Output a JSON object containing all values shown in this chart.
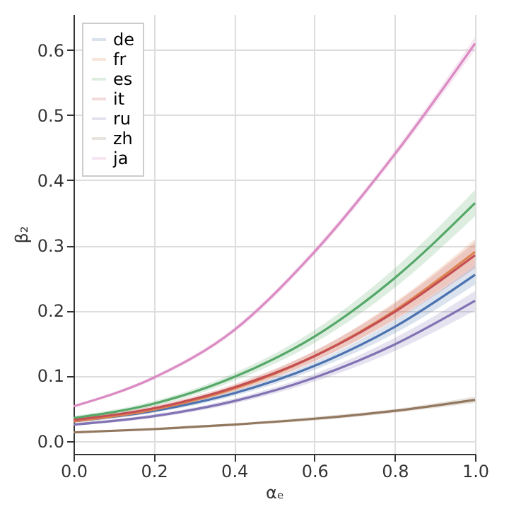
{
  "chart_data": {
    "type": "line",
    "xlabel": "αₑ",
    "ylabel": "β₂",
    "x": [
      0,
      0.2,
      0.4,
      0.6,
      0.8,
      1.0
    ],
    "xlim": [
      0,
      1
    ],
    "xticks": [
      {
        "value": 0,
        "label": "0.0"
      },
      0.2,
      0.4,
      0.6,
      0.8,
      {
        "value": 1,
        "label": "1.0"
      }
    ],
    "ylim": [
      -0.02,
      0.655
    ],
    "yticks": [
      {
        "value": 0,
        "label": "0.0"
      },
      0.1,
      0.2,
      0.3,
      0.4,
      0.5,
      0.6
    ],
    "grid": true,
    "legend": "top left",
    "marker": "none",
    "line_style": "solid",
    "series": [
      {
        "name": "de",
        "color": "#4c72b0",
        "values": [
          0.03,
          0.046,
          0.073,
          0.115,
          0.175,
          0.255
        ],
        "lower": [
          0.028,
          0.043,
          0.069,
          0.109,
          0.165,
          0.24
        ],
        "upper": [
          0.032,
          0.049,
          0.077,
          0.121,
          0.185,
          0.27
        ]
      },
      {
        "name": "fr",
        "color": "#dd8452",
        "values": [
          0.03,
          0.048,
          0.08,
          0.13,
          0.2,
          0.29
        ],
        "lower": [
          0.027,
          0.044,
          0.075,
          0.122,
          0.187,
          0.27
        ],
        "upper": [
          0.033,
          0.052,
          0.085,
          0.138,
          0.213,
          0.31
        ]
      },
      {
        "name": "es",
        "color": "#55a868",
        "values": [
          0.035,
          0.057,
          0.098,
          0.16,
          0.25,
          0.365
        ],
        "lower": [
          0.032,
          0.053,
          0.092,
          0.15,
          0.235,
          0.345
        ],
        "upper": [
          0.038,
          0.061,
          0.104,
          0.17,
          0.265,
          0.385
        ]
      },
      {
        "name": "it",
        "color": "#c44e52",
        "values": [
          0.032,
          0.05,
          0.082,
          0.13,
          0.198,
          0.285
        ],
        "lower": [
          0.029,
          0.046,
          0.077,
          0.122,
          0.185,
          0.265
        ],
        "upper": [
          0.035,
          0.054,
          0.087,
          0.138,
          0.211,
          0.305
        ]
      },
      {
        "name": "ru",
        "color": "#8172b3",
        "values": [
          0.025,
          0.038,
          0.061,
          0.097,
          0.148,
          0.215
        ],
        "lower": [
          0.023,
          0.035,
          0.057,
          0.091,
          0.138,
          0.2
        ],
        "upper": [
          0.027,
          0.041,
          0.065,
          0.103,
          0.158,
          0.23
        ]
      },
      {
        "name": "zh",
        "color": "#937860",
        "values": [
          0.013,
          0.018,
          0.025,
          0.034,
          0.046,
          0.063
        ],
        "lower": [
          0.012,
          0.016,
          0.023,
          0.031,
          0.043,
          0.058
        ],
        "upper": [
          0.014,
          0.02,
          0.027,
          0.037,
          0.049,
          0.068
        ]
      },
      {
        "name": "ja",
        "color": "#da8bc3",
        "values": [
          0.053,
          0.097,
          0.17,
          0.29,
          0.44,
          0.61
        ],
        "lower": [
          0.051,
          0.094,
          0.166,
          0.285,
          0.434,
          0.6
        ],
        "upper": [
          0.055,
          0.1,
          0.174,
          0.295,
          0.446,
          0.62
        ]
      }
    ]
  }
}
